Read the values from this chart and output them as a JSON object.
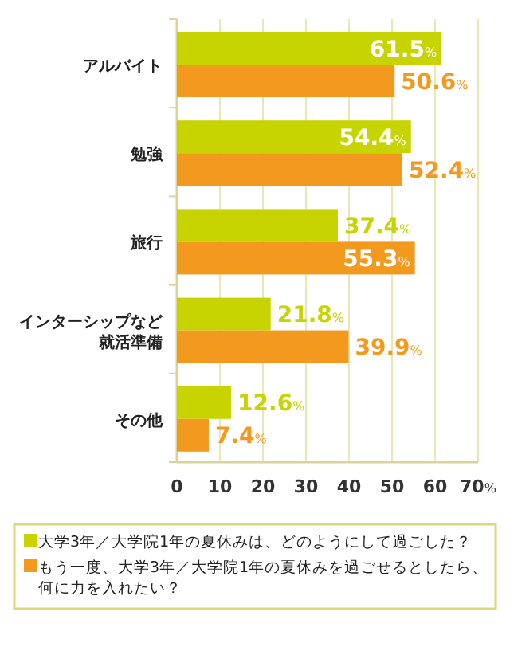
{
  "chart_data": {
    "type": "bar",
    "orientation": "horizontal",
    "categories": [
      "アルバイト",
      "勉強",
      "旅行",
      "インターシップなど就活準備",
      "その他"
    ],
    "series": [
      {
        "name": "大学3年／大学院1年の夏休みは、どのようにして過ごした？",
        "color": "#c8d400",
        "values": [
          61.5,
          54.4,
          37.4,
          21.8,
          12.6
        ],
        "value_labels": [
          "61.5%",
          "54.4%",
          "37.4%",
          "21.8%",
          "12.6%"
        ]
      },
      {
        "name": "もう一度、大学3年／大学院1年の夏休みを過ごせるとしたら、何に力を入れたい？",
        "color": "#f39a1e",
        "values": [
          50.6,
          52.4,
          55.3,
          39.9,
          7.4
        ],
        "value_labels": [
          "50.6%",
          "52.4%",
          "55.3%",
          "39.9%",
          "7.4%"
        ]
      }
    ],
    "xlim": [
      0,
      70
    ],
    "xticks": [
      0,
      10,
      20,
      30,
      40,
      50,
      60,
      {
        "value": 70,
        "label": "70%"
      }
    ],
    "grid": "x",
    "legend": "bottom"
  }
}
